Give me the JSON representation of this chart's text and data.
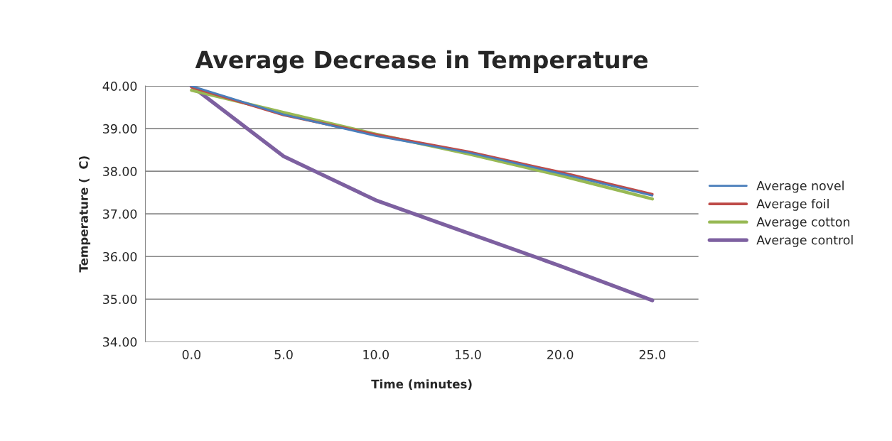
{
  "chart_data": {
    "type": "line",
    "title": "Average Decrease in Temperature",
    "xlabel": "Time (minutes)",
    "ylabel": "Temperature (  C)",
    "categories": [
      "0.0",
      "5.0",
      "10.0",
      "15.0",
      "20.0",
      "25.0"
    ],
    "series": [
      {
        "name": "Average novel",
        "color": "#4a7ebb",
        "values": [
          40.0,
          39.33,
          38.83,
          38.44,
          37.95,
          37.43
        ]
      },
      {
        "name": "Average foil",
        "color": "#be4b48",
        "values": [
          39.97,
          39.32,
          38.86,
          38.46,
          37.98,
          37.46
        ]
      },
      {
        "name": "Average cotton",
        "color": "#98b954",
        "values": [
          39.9,
          39.38,
          38.87,
          38.41,
          37.9,
          37.35
        ]
      },
      {
        "name": "Average control",
        "color": "#7d60a0",
        "values": [
          40.0,
          38.35,
          37.32,
          36.55,
          35.78,
          34.97
        ]
      }
    ],
    "ylim": [
      34,
      40
    ],
    "yticks": [
      {
        "value": 34,
        "label": "34.00"
      },
      {
        "value": 35,
        "label": "35.00"
      },
      {
        "value": 36,
        "label": "36.00"
      },
      {
        "value": 37,
        "label": "37.00"
      },
      {
        "value": 38,
        "label": "38.00"
      },
      {
        "value": 39,
        "label": "39.00"
      },
      {
        "value": 40,
        "label": "40.00"
      }
    ],
    "grid": "y",
    "legend": "right",
    "marker": "none",
    "line_style": "solid"
  }
}
